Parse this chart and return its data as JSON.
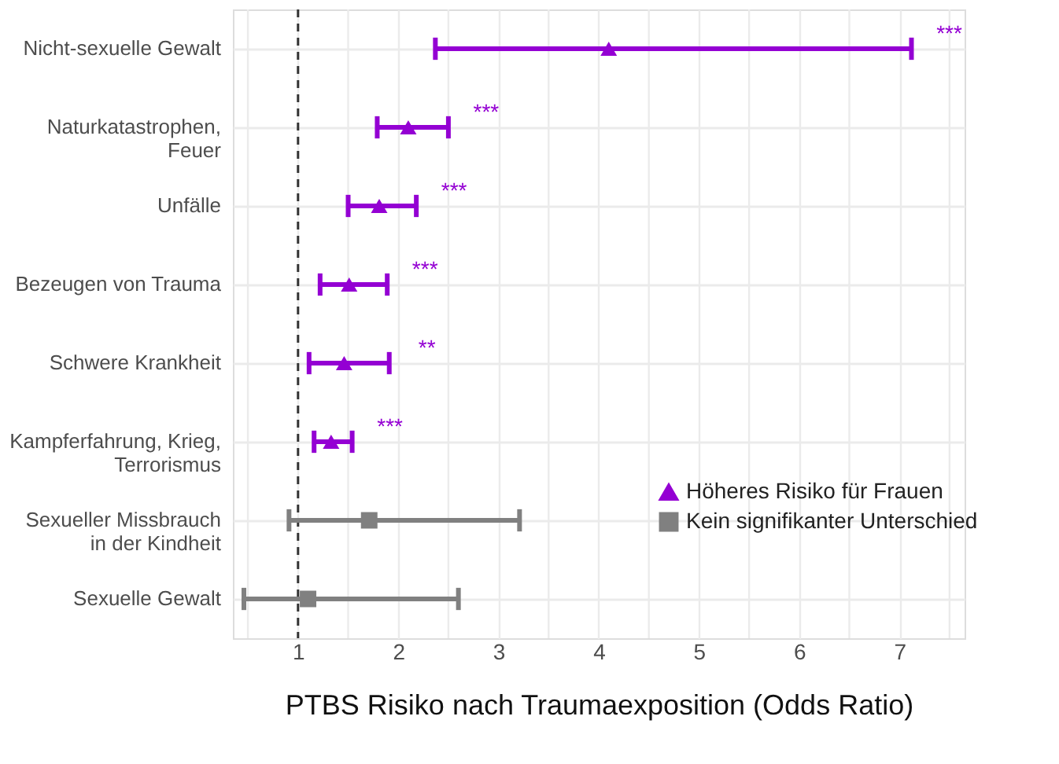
{
  "chart_data": {
    "type": "scatter",
    "orientation": "horizontal",
    "xlabel": "PTBS Risiko nach Traumaexposition (Odds Ratio)",
    "categories": [
      "Nicht-sexuelle Gewalt",
      "Naturkatastrophen,\nFeuer",
      "Unfälle",
      "Bezeugen von Trauma",
      "Schwere Krankheit",
      "Kampferfahrung, Krieg,\nTerrorismus",
      "Sexueller Missbrauch\nin der Kindheit",
      "Sexuelle Gewalt"
    ],
    "series": [
      {
        "name": "Höheres Risiko für Frauen",
        "color": "#9400d3",
        "marker": "triangle",
        "values": [
          4.1,
          2.1,
          1.81,
          1.51,
          1.46,
          1.33,
          null,
          null
        ],
        "errors": [
          [
            2.37,
            7.12
          ],
          [
            1.79,
            2.5
          ],
          [
            1.5,
            2.18
          ],
          [
            1.22,
            1.89
          ],
          [
            1.11,
            1.91
          ],
          [
            1.16,
            1.54
          ],
          null,
          null
        ]
      },
      {
        "name": "Kein signifikanter Unterschied",
        "color": "#808080",
        "marker": "square",
        "values": [
          null,
          null,
          null,
          null,
          null,
          null,
          1.71,
          1.1
        ],
        "errors": [
          null,
          null,
          null,
          null,
          null,
          null,
          [
            0.91,
            3.21
          ],
          [
            0.46,
            2.6
          ]
        ]
      }
    ],
    "xlim": [
      0.35,
      7.65
    ],
    "xticks": [
      {
        "value": 0.5,
        "label": null
      },
      1,
      {
        "value": 1.5,
        "label": null
      },
      2,
      {
        "value": 2.5,
        "label": null
      },
      3,
      {
        "value": 3.5,
        "label": null
      },
      4,
      {
        "value": 4.5,
        "label": null
      },
      5,
      {
        "value": 5.5,
        "label": null
      },
      6,
      {
        "value": 6.5,
        "label": null
      },
      7,
      {
        "value": 7.5,
        "label": null
      }
    ],
    "ref_lines": [
      {
        "axis": "x",
        "value": 1,
        "color": "#333333",
        "line_style": "dashed"
      }
    ],
    "annotations": [
      {
        "text": "***",
        "x": 7.12,
        "y": "Nicht-sexuelle Gewalt"
      },
      {
        "text": "***",
        "x": 2.5,
        "y": "Naturkatastrophen,\nFeuer"
      },
      {
        "text": "***",
        "x": 2.18,
        "y": "Unfälle"
      },
      {
        "text": "***",
        "x": 1.89,
        "y": "Bezeugen von Trauma"
      },
      {
        "text": "**",
        "x": 1.91,
        "y": "Schwere Krankheit"
      },
      {
        "text": "***",
        "x": 1.54,
        "y": "Kampferfahrung, Krieg,\nTerrorismus"
      }
    ],
    "grid": true,
    "legend": "right"
  }
}
